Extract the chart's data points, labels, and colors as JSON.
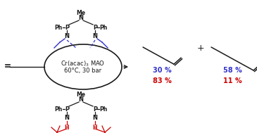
{
  "fig_width": 3.65,
  "fig_height": 1.89,
  "dpi": 100,
  "bg_color": "#ffffff",
  "black_color": "#1a1a1a",
  "blue_color": "#3333cc",
  "red_color": "#cc0000",
  "pct_1_blue": "30 %",
  "pct_1_red": "83 %",
  "pct_2_blue": "58 %",
  "pct_2_red": "11 %"
}
